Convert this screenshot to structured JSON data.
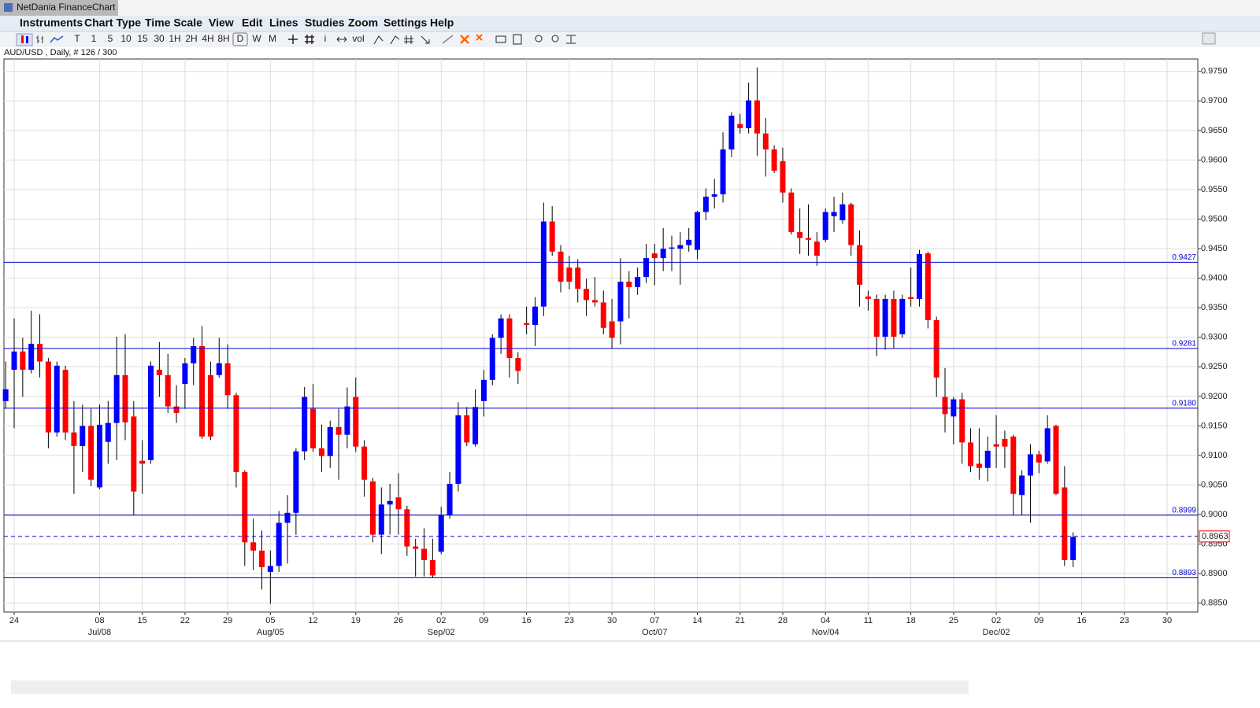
{
  "window": {
    "title": "NetDania FinanceChart"
  },
  "menu": [
    "Instruments",
    "Chart Type",
    "Time Scale",
    "View",
    "Edit",
    "Lines",
    "Studies",
    "Zoom",
    "Settings",
    "Help"
  ],
  "toolbar": [
    "T",
    "1",
    "5",
    "10",
    "15",
    "30",
    "1H",
    "2H",
    "4H",
    "8H",
    "D",
    "W",
    "M",
    "i",
    "vol"
  ],
  "info": "AUD/USD , Daily, # 126 / 300",
  "chart_data": {
    "type": "candlestick",
    "up_color": "#0000ff",
    "down_color": "#ff0000",
    "wick_color": "#000000",
    "grid": true,
    "level_color": "#0000cc",
    "xlim": [
      -0.2,
      139.6
    ],
    "ylim": [
      0.8835,
      0.9771
    ],
    "yticks": [
      {
        "value": 0.885,
        "label": "0.8850"
      },
      {
        "value": 0.89,
        "label": "0.8900"
      },
      {
        "value": 0.895,
        "label": "0.8950"
      },
      {
        "value": 0.9,
        "label": "0.9000"
      },
      {
        "value": 0.905,
        "label": "0.9050"
      },
      {
        "value": 0.91,
        "label": "0.9100"
      },
      {
        "value": 0.915,
        "label": "0.9150"
      },
      {
        "value": 0.92,
        "label": "0.9200"
      },
      {
        "value": 0.925,
        "label": "0.9250"
      },
      {
        "value": 0.93,
        "label": "0.9300"
      },
      {
        "value": 0.935,
        "label": "0.9350"
      },
      {
        "value": 0.94,
        "label": "0.9400"
      },
      {
        "value": 0.945,
        "label": "0.9450"
      },
      {
        "value": 0.95,
        "label": "0.9500"
      },
      {
        "value": 0.955,
        "label": "0.9550"
      },
      {
        "value": 0.96,
        "label": "0.9600"
      },
      {
        "value": 0.965,
        "label": "0.9650"
      },
      {
        "value": 0.97,
        "label": "0.9700"
      },
      {
        "value": 0.975,
        "label": "0.9750"
      }
    ],
    "xticks": [
      {
        "value": 1,
        "label": "24"
      },
      {
        "value": 11,
        "label": "08"
      },
      {
        "value": 16,
        "label": "15"
      },
      {
        "value": 21,
        "label": "22"
      },
      {
        "value": 26,
        "label": "29"
      },
      {
        "value": 31,
        "label": "05"
      },
      {
        "value": 36,
        "label": "12"
      },
      {
        "value": 41,
        "label": "19"
      },
      {
        "value": 46,
        "label": "26"
      },
      {
        "value": 51,
        "label": "02"
      },
      {
        "value": 56,
        "label": "09"
      },
      {
        "value": 61,
        "label": "16"
      },
      {
        "value": 66,
        "label": "23"
      },
      {
        "value": 71,
        "label": "30"
      },
      {
        "value": 76,
        "label": "07"
      },
      {
        "value": 81,
        "label": "14"
      },
      {
        "value": 86,
        "label": "21"
      },
      {
        "value": 91,
        "label": "28"
      },
      {
        "value": 96,
        "label": "04"
      },
      {
        "value": 101,
        "label": "11"
      },
      {
        "value": 106,
        "label": "18"
      },
      {
        "value": 111,
        "label": "25"
      },
      {
        "value": 116,
        "label": "02"
      },
      {
        "value": 121,
        "label": "09"
      },
      {
        "value": 126,
        "label": "16"
      },
      {
        "value": 131,
        "label": "23"
      },
      {
        "value": 136,
        "label": "30"
      }
    ],
    "xticks_major": [
      {
        "value": 11,
        "label": "Jul/08"
      },
      {
        "value": 31,
        "label": "Aug/05"
      },
      {
        "value": 51,
        "label": "Sep/02"
      },
      {
        "value": 76,
        "label": "Oct/07"
      },
      {
        "value": 96,
        "label": "Nov/04"
      },
      {
        "value": 116,
        "label": "Dec/02"
      }
    ],
    "levels": [
      0.9427,
      0.9281,
      {
        "value": 0.918,
        "label": "0.9180"
      },
      0.8999,
      0.8893
    ],
    "last": 0.8963,
    "open": [
      0.9192,
      0.9245,
      0.9276,
      0.9245,
      0.9289,
      0.9259,
      0.9139,
      0.9245,
      0.9139,
      0.9116,
      0.915,
      0.9046,
      0.9123,
      0.9155,
      0.9236,
      0.9166,
      0.9091,
      0.9092,
      0.9245,
      0.9236,
      0.9183,
      0.9221,
      0.9256,
      0.9285,
      0.9236,
      0.9236,
      0.9256,
      0.9202,
      0.9072,
      0.8953,
      0.8939,
      0.8903,
      0.8913,
      0.8986,
      0.9003,
      0.9107,
      0.9179,
      0.9112,
      0.9099,
      0.9148,
      0.9135,
      0.9199,
      0.9115,
      0.9056,
      0.8966,
      0.9017,
      0.9029,
      0.9009,
      0.8946,
      0.8942,
      0.8923,
      0.8937,
      0.8999,
      0.9052,
      0.9168,
      0.9119,
      0.9192,
      0.9228,
      0.9299,
      0.9332,
      0.9265,
      0.9324,
      0.9321,
      0.9352,
      0.9496,
      0.9445,
      0.9418,
      0.9418,
      0.9382,
      0.9363,
      0.9359,
      0.9327,
      0.9327,
      0.9394,
      0.9385,
      0.9402,
      0.9442,
      0.9434,
      0.945,
      0.945,
      0.9456,
      0.9448,
      0.9512,
      0.9538,
      0.9542,
      0.9618,
      0.9661,
      0.9654,
      0.9701,
      0.9645,
      0.9618,
      0.9598,
      0.9545,
      0.9478,
      0.9468,
      0.9462,
      0.9465,
      0.9505,
      0.9498,
      0.9525,
      0.9456,
      0.9369,
      0.9365,
      0.9301,
      0.9365,
      0.9305,
      0.9368,
      0.9365,
      0.9442,
      0.9329,
      0.9199,
      0.9166,
      0.9195,
      0.9122,
      0.9086,
      0.9079,
      0.9119,
      0.9128,
      0.9132,
      0.9033,
      0.9066,
      0.9102,
      0.909,
      0.915,
      0.9046,
      0.8923
    ],
    "high": [
      0.9259,
      0.9332,
      0.9299,
      0.9345,
      0.9339,
      0.9265,
      0.9259,
      0.9252,
      0.9192,
      0.9186,
      0.9179,
      0.9186,
      0.9192,
      0.9301,
      0.9305,
      0.9192,
      0.9126,
      0.9259,
      0.9292,
      0.9272,
      0.9219,
      0.9265,
      0.9299,
      0.9319,
      0.9259,
      0.9299,
      0.9288,
      0.9206,
      0.9075,
      0.8993,
      0.8973,
      0.8939,
      0.9006,
      0.9033,
      0.9112,
      0.9216,
      0.9221,
      0.9152,
      0.9159,
      0.9179,
      0.9215,
      0.9232,
      0.9126,
      0.9062,
      0.9046,
      0.9052,
      0.907,
      0.9015,
      0.8959,
      0.8977,
      0.8959,
      0.9013,
      0.9072,
      0.919,
      0.9182,
      0.9212,
      0.9245,
      0.9305,
      0.9339,
      0.9339,
      0.9275,
      0.9352,
      0.9368,
      0.9528,
      0.9522,
      0.9456,
      0.9438,
      0.9432,
      0.9399,
      0.9402,
      0.9379,
      0.9365,
      0.9434,
      0.9412,
      0.9418,
      0.9458,
      0.9458,
      0.9485,
      0.9472,
      0.9478,
      0.9485,
      0.9514,
      0.9552,
      0.9568,
      0.9647,
      0.9681,
      0.9678,
      0.9731,
      0.9757,
      0.9671,
      0.9625,
      0.9621,
      0.9552,
      0.9518,
      0.9525,
      0.9478,
      0.9518,
      0.9538,
      0.9545,
      0.9528,
      0.9481,
      0.9379,
      0.9372,
      0.9372,
      0.9379,
      0.9372,
      0.9418,
      0.9448,
      0.9445,
      0.9335,
      0.9248,
      0.9199,
      0.9206,
      0.9146,
      0.9146,
      0.9132,
      0.9168,
      0.9142,
      0.9135,
      0.9075,
      0.9119,
      0.9108,
      0.9168,
      0.9152,
      0.9082,
      0.897
    ],
    "low": [
      0.9179,
      0.9146,
      0.9199,
      0.9239,
      0.9232,
      0.9112,
      0.9132,
      0.9126,
      0.9035,
      0.9072,
      0.9048,
      0.9043,
      0.9086,
      0.9092,
      0.9126,
      0.8999,
      0.9035,
      0.9086,
      0.9199,
      0.9172,
      0.9155,
      0.9179,
      0.9219,
      0.9128,
      0.9126,
      0.9232,
      0.9179,
      0.9046,
      0.8913,
      0.8906,
      0.8873,
      0.8849,
      0.8903,
      0.8917,
      0.8966,
      0.9092,
      0.9106,
      0.9072,
      0.9079,
      0.9059,
      0.9112,
      0.9106,
      0.903,
      0.8953,
      0.8933,
      0.8966,
      0.8966,
      0.893,
      0.8895,
      0.8895,
      0.8893,
      0.8933,
      0.8993,
      0.9039,
      0.9116,
      0.9115,
      0.9166,
      0.9219,
      0.9272,
      0.9232,
      0.9221,
      0.9305,
      0.9285,
      0.9336,
      0.9438,
      0.9376,
      0.9381,
      0.9359,
      0.9336,
      0.9352,
      0.9305,
      0.9281,
      0.9288,
      0.9332,
      0.9372,
      0.9392,
      0.9388,
      0.9412,
      0.9412,
      0.9389,
      0.9445,
      0.9432,
      0.9498,
      0.9518,
      0.9528,
      0.9605,
      0.9645,
      0.9645,
      0.9607,
      0.9572,
      0.9578,
      0.9528,
      0.9474,
      0.9441,
      0.9438,
      0.9421,
      0.9461,
      0.9478,
      0.9492,
      0.9438,
      0.9352,
      0.9345,
      0.9268,
      0.9279,
      0.9281,
      0.9299,
      0.9352,
      0.9352,
      0.9315,
      0.9199,
      0.9139,
      0.9119,
      0.9086,
      0.9072,
      0.9059,
      0.9056,
      0.9079,
      0.9079,
      0.8999,
      0.8999,
      0.8986,
      0.907,
      0.9086,
      0.9033,
      0.8913,
      0.8911
    ],
    "close": [
      0.9212,
      0.9276,
      0.9245,
      0.9289,
      0.9259,
      0.9139,
      0.9252,
      0.9139,
      0.9116,
      0.915,
      0.9059,
      0.9152,
      0.9155,
      0.9236,
      0.9156,
      0.9039,
      0.9086,
      0.9252,
      0.9236,
      0.9183,
      0.9172,
      0.9256,
      0.9285,
      0.9132,
      0.9132,
      0.9256,
      0.9202,
      0.9072,
      0.8953,
      0.8939,
      0.8911,
      0.8913,
      0.8986,
      0.9003,
      0.9107,
      0.9199,
      0.9112,
      0.9099,
      0.9148,
      0.9135,
      0.9183,
      0.9115,
      0.9059,
      0.8966,
      0.9017,
      0.9023,
      0.9009,
      0.8946,
      0.8942,
      0.8923,
      0.8897,
      0.8999,
      0.9052,
      0.9168,
      0.9122,
      0.9182,
      0.9228,
      0.9299,
      0.9332,
      0.9265,
      0.9243,
      0.9321,
      0.9352,
      0.9496,
      0.9445,
      0.9394,
      0.9394,
      0.9382,
      0.9363,
      0.9359,
      0.9316,
      0.9299,
      0.9394,
      0.9385,
      0.9402,
      0.9434,
      0.9434,
      0.945,
      0.9452,
      0.9456,
      0.9465,
      0.9512,
      0.9538,
      0.9542,
      0.9618,
      0.9675,
      0.9654,
      0.9701,
      0.9645,
      0.9618,
      0.9582,
      0.9545,
      0.9478,
      0.9468,
      0.9465,
      0.9438,
      0.9512,
      0.9512,
      0.9525,
      0.9456,
      0.9389,
      0.9365,
      0.9301,
      0.9365,
      0.9301,
      0.9365,
      0.9365,
      0.9441,
      0.9329,
      0.9232,
      0.917,
      0.9195,
      0.9122,
      0.9082,
      0.9079,
      0.9108,
      0.9115,
      0.9115,
      0.9035,
      0.9066,
      0.9102,
      0.9088,
      0.9146,
      0.9035,
      0.8923,
      0.8962
    ]
  }
}
